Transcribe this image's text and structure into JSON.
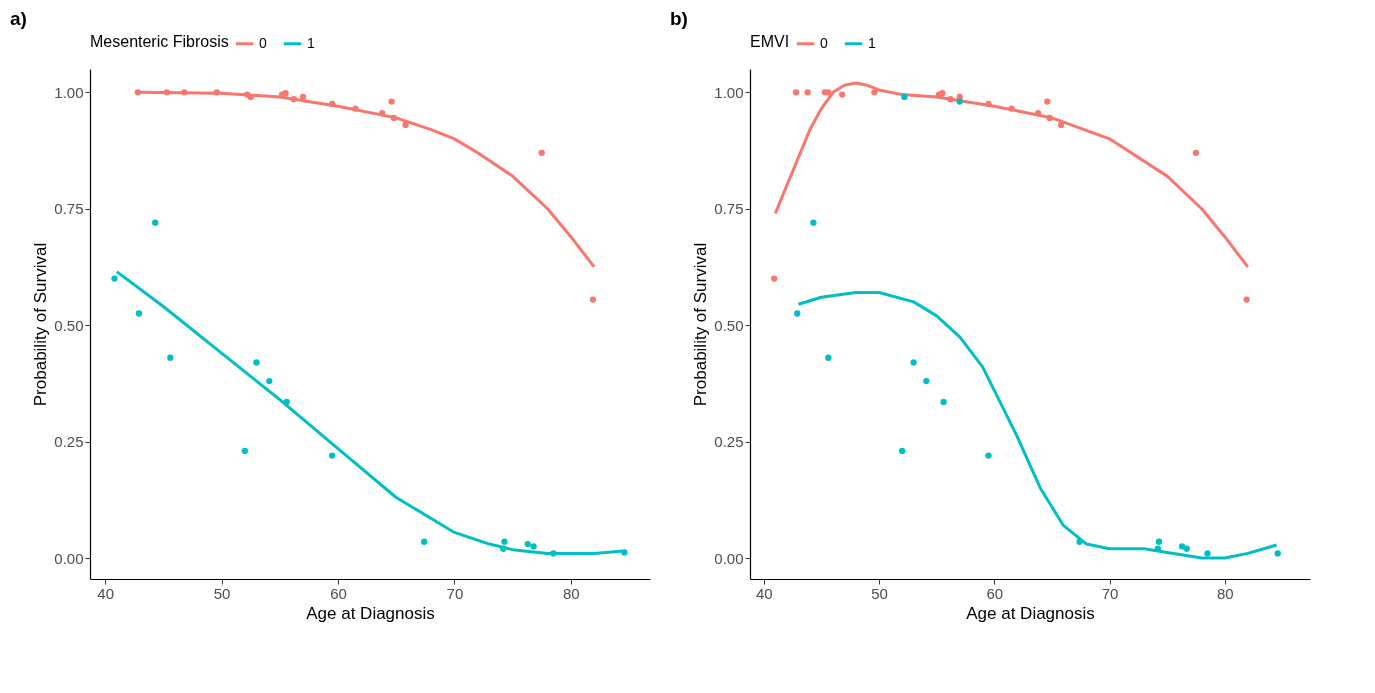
{
  "chart_data": [
    {
      "type": "line",
      "xlabel": "Age at Diagnosis",
      "ylabel": "Probability of Survival",
      "legend_title": "Mesenteric Fibrosis",
      "legend": "top",
      "grid": false,
      "line_style": "solid",
      "annotations": [
        "a)"
      ],
      "xlim": [
        38.7,
        86.8
      ],
      "ylim": [
        -0.045,
        1.05
      ],
      "xticks": [
        40,
        50,
        60,
        70,
        80
      ],
      "yticks": [
        {
          "value": 0,
          "label": "0.00"
        },
        {
          "value": 0.25,
          "label": "0.25"
        },
        {
          "value": 0.5,
          "label": "0.50"
        },
        {
          "value": 0.75,
          "label": "0.75"
        },
        {
          "value": 1,
          "label": "1.00"
        }
      ],
      "series": [
        {
          "name": "0",
          "type": "line",
          "color": "#f8766d",
          "x": [
            42.8,
            50,
            55,
            60,
            65,
            68,
            70,
            72,
            75,
            78,
            80,
            82
          ],
          "values": [
            1.0,
            0.998,
            0.99,
            0.97,
            0.945,
            0.92,
            0.9,
            0.87,
            0.82,
            0.75,
            0.69,
            0.625
          ]
        },
        {
          "name": "1",
          "type": "line",
          "color": "#00bfc4",
          "x": [
            41,
            45,
            50,
            55,
            60,
            65,
            70,
            73,
            75,
            78,
            82,
            84.5
          ],
          "values": [
            0.615,
            0.54,
            0.44,
            0.34,
            0.235,
            0.13,
            0.055,
            0.03,
            0.018,
            0.01,
            0.01,
            0.015
          ]
        },
        {
          "type": "scatter",
          "marker": "circle",
          "color": "#f8766d",
          "x": [
            42.8,
            45.3,
            46.8,
            49.6,
            52.2,
            52.5,
            55.2,
            55.5,
            56.2,
            57,
            59.5,
            61.5,
            63.8,
            64.6,
            64.8,
            65.8,
            77.5,
            81.9
          ],
          "values": [
            1.0,
            1.0,
            1.0,
            1.0,
            0.995,
            0.99,
            0.995,
            0.998,
            0.985,
            0.99,
            0.975,
            0.965,
            0.955,
            0.98,
            0.945,
            0.93,
            0.87,
            0.555
          ]
        },
        {
          "type": "scatter",
          "marker": "circle",
          "color": "#00bfc4",
          "x": [
            40.8,
            42.9,
            44.3,
            45.6,
            52,
            53,
            54.1,
            55.6,
            59.5,
            67.4,
            74.3,
            74.2,
            76.3,
            76.8,
            78.5,
            84.6
          ],
          "values": [
            0.6,
            0.525,
            0.72,
            0.43,
            0.23,
            0.42,
            0.38,
            0.335,
            0.22,
            0.035,
            0.035,
            0.02,
            0.03,
            0.025,
            0.01,
            0.012
          ]
        }
      ]
    },
    {
      "type": "line",
      "xlabel": "Age at Diagnosis",
      "ylabel": "Probability of Survival",
      "legend_title": "EMVI",
      "legend": "top",
      "grid": false,
      "line_style": "solid",
      "annotations": [
        "b)"
      ],
      "xlim": [
        38.8,
        87.4
      ],
      "ylim": [
        -0.045,
        1.05
      ],
      "xticks": [
        40,
        50,
        60,
        70,
        80
      ],
      "yticks": [
        {
          "value": 0,
          "label": "0.00"
        },
        {
          "value": 0.25,
          "label": "0.25"
        },
        {
          "value": 0.5,
          "label": "0.50"
        },
        {
          "value": 0.75,
          "label": "0.75"
        },
        {
          "value": 1,
          "label": "1.00"
        }
      ],
      "series": [
        {
          "name": "0",
          "type": "line",
          "color": "#f8766d",
          "x": [
            41,
            42,
            43,
            44,
            45,
            46,
            47,
            48,
            49,
            50,
            52,
            55,
            60,
            65,
            70,
            75,
            78,
            80,
            82
          ],
          "values": [
            0.74,
            0.8,
            0.86,
            0.92,
            0.965,
            1.0,
            1.015,
            1.02,
            1.015,
            1.005,
            0.995,
            0.99,
            0.97,
            0.945,
            0.9,
            0.82,
            0.75,
            0.69,
            0.625
          ]
        },
        {
          "name": "1",
          "type": "line",
          "color": "#00bfc4",
          "x": [
            43,
            45,
            48,
            50,
            53,
            55,
            57,
            59,
            60,
            62,
            64,
            66,
            68,
            70,
            73,
            75,
            78,
            80,
            82,
            84.5
          ],
          "values": [
            0.545,
            0.56,
            0.57,
            0.57,
            0.55,
            0.52,
            0.475,
            0.41,
            0.36,
            0.26,
            0.15,
            0.07,
            0.03,
            0.02,
            0.02,
            0.012,
            0.0,
            0.0,
            0.01,
            0.028
          ]
        },
        {
          "type": "scatter",
          "marker": "circle",
          "color": "#f8766d",
          "x": [
            40.9,
            42.8,
            43.8,
            45.3,
            45.6,
            46.8,
            49.6,
            55.2,
            55.5,
            56.2,
            57,
            59.5,
            61.5,
            63.8,
            64.6,
            64.8,
            65.8,
            77.5,
            81.9
          ],
          "values": [
            0.6,
            1.0,
            1.0,
            1.0,
            1.0,
            0.995,
            1.0,
            0.995,
            0.998,
            0.985,
            0.99,
            0.975,
            0.965,
            0.955,
            0.98,
            0.945,
            0.93,
            0.87,
            0.555
          ]
        },
        {
          "type": "scatter",
          "marker": "circle",
          "color": "#00bfc4",
          "x": [
            42.9,
            44.3,
            45.6,
            52,
            53,
            54.1,
            55.6,
            59.5,
            67.4,
            74.3,
            74.2,
            76.3,
            76.7,
            78.5,
            84.6,
            52.2,
            57
          ],
          "values": [
            0.525,
            0.72,
            0.43,
            0.23,
            0.42,
            0.38,
            0.335,
            0.22,
            0.035,
            0.035,
            0.02,
            0.025,
            0.02,
            0.01,
            0.01,
            0.99,
            0.98
          ]
        }
      ]
    }
  ]
}
